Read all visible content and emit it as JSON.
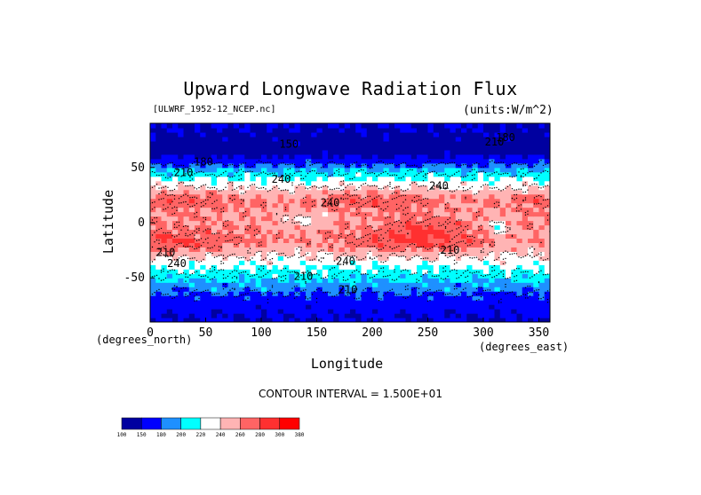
{
  "chart_data": {
    "type": "heatmap",
    "title": "Upward Longwave Radiation Flux",
    "subtitle": "[ULWRF_1952-12_NCEP.nc]",
    "units": "(units:W/m^2)",
    "xlabel": "Longitude",
    "ylabel": "Latitude",
    "x_unit_label": "(degrees_east)",
    "y_unit_label": "(degrees_north)",
    "xlim": [
      0,
      360
    ],
    "ylim": [
      -90,
      90
    ],
    "x_ticks": [
      0,
      50,
      100,
      150,
      200,
      250,
      300,
      350
    ],
    "y_ticks": [
      50,
      0,
      -50
    ],
    "contour_interval": "CONTOUR INTERVAL = 1.500E+01",
    "contour_labels": [
      {
        "text": "240",
        "lon": 118,
        "lat": 36
      },
      {
        "text": "240",
        "lon": 162,
        "lat": 15
      },
      {
        "text": "240",
        "lon": 176,
        "lat": -38
      },
      {
        "text": "210",
        "lon": 138,
        "lat": -52
      },
      {
        "text": "210",
        "lon": 178,
        "lat": -64
      },
      {
        "text": "240",
        "lon": 24,
        "lat": -40
      },
      {
        "text": "210",
        "lon": 14,
        "lat": -30
      },
      {
        "text": "210",
        "lon": 30,
        "lat": 42
      },
      {
        "text": "180",
        "lon": 48,
        "lat": 52
      },
      {
        "text": "240",
        "lon": 260,
        "lat": 30
      },
      {
        "text": "210",
        "lon": 270,
        "lat": -28
      },
      {
        "text": "210",
        "lon": 310,
        "lat": 70
      },
      {
        "text": "180",
        "lon": 320,
        "lat": 74
      },
      {
        "text": "150",
        "lon": 125,
        "lat": 68
      }
    ],
    "colorbar": {
      "levels": [
        100,
        150,
        180,
        200,
        220,
        240,
        260,
        280,
        300,
        380
      ],
      "colors": [
        "#0000a0",
        "#0000ff",
        "#1e90ff",
        "#00ffff",
        "#ffffff",
        "#ffb4b4",
        "#ff6464",
        "#ff3030",
        "#ff0000"
      ]
    }
  }
}
